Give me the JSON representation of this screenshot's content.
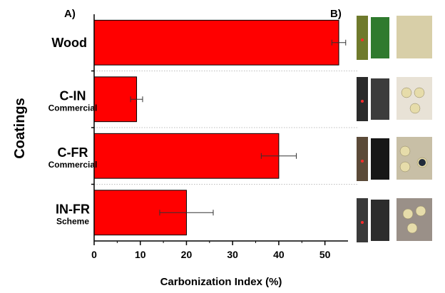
{
  "panel_labels": {
    "a": "A)",
    "b": "B)"
  },
  "chart_data": {
    "type": "bar",
    "orientation": "horizontal",
    "title": "",
    "xlabel": "Carbonization Index (%)",
    "ylabel": "Coatings",
    "xlim": [
      0,
      55
    ],
    "xticks": [
      0,
      10,
      20,
      30,
      40,
      50
    ],
    "categories": [
      {
        "name": "Wood",
        "sublabel": ""
      },
      {
        "name": "C-IN",
        "sublabel": "Commercial"
      },
      {
        "name": "C-FR",
        "sublabel": "Commercial"
      },
      {
        "name": "IN-FR",
        "sublabel": "Scheme"
      }
    ],
    "values": [
      53,
      9.2,
      40,
      20
    ],
    "errors": [
      1.5,
      1.3,
      3.8,
      5.8
    ],
    "bar_color": "#ff0000",
    "separators": "dotted"
  },
  "photos": [
    {
      "row": "Wood",
      "tones": [
        "#6f7a2c",
        "#2f7a2e",
        "#d8cfa8"
      ]
    },
    {
      "row": "C-IN",
      "tones": [
        "#2a2a2a",
        "#3c3c3c",
        "#e8e2d6"
      ]
    },
    {
      "row": "C-FR",
      "tones": [
        "#5b4a38",
        "#161616",
        "#c8bfa6"
      ]
    },
    {
      "row": "IN-FR",
      "tones": [
        "#3a3a3a",
        "#2c2c2c",
        "#9a9088"
      ]
    }
  ]
}
